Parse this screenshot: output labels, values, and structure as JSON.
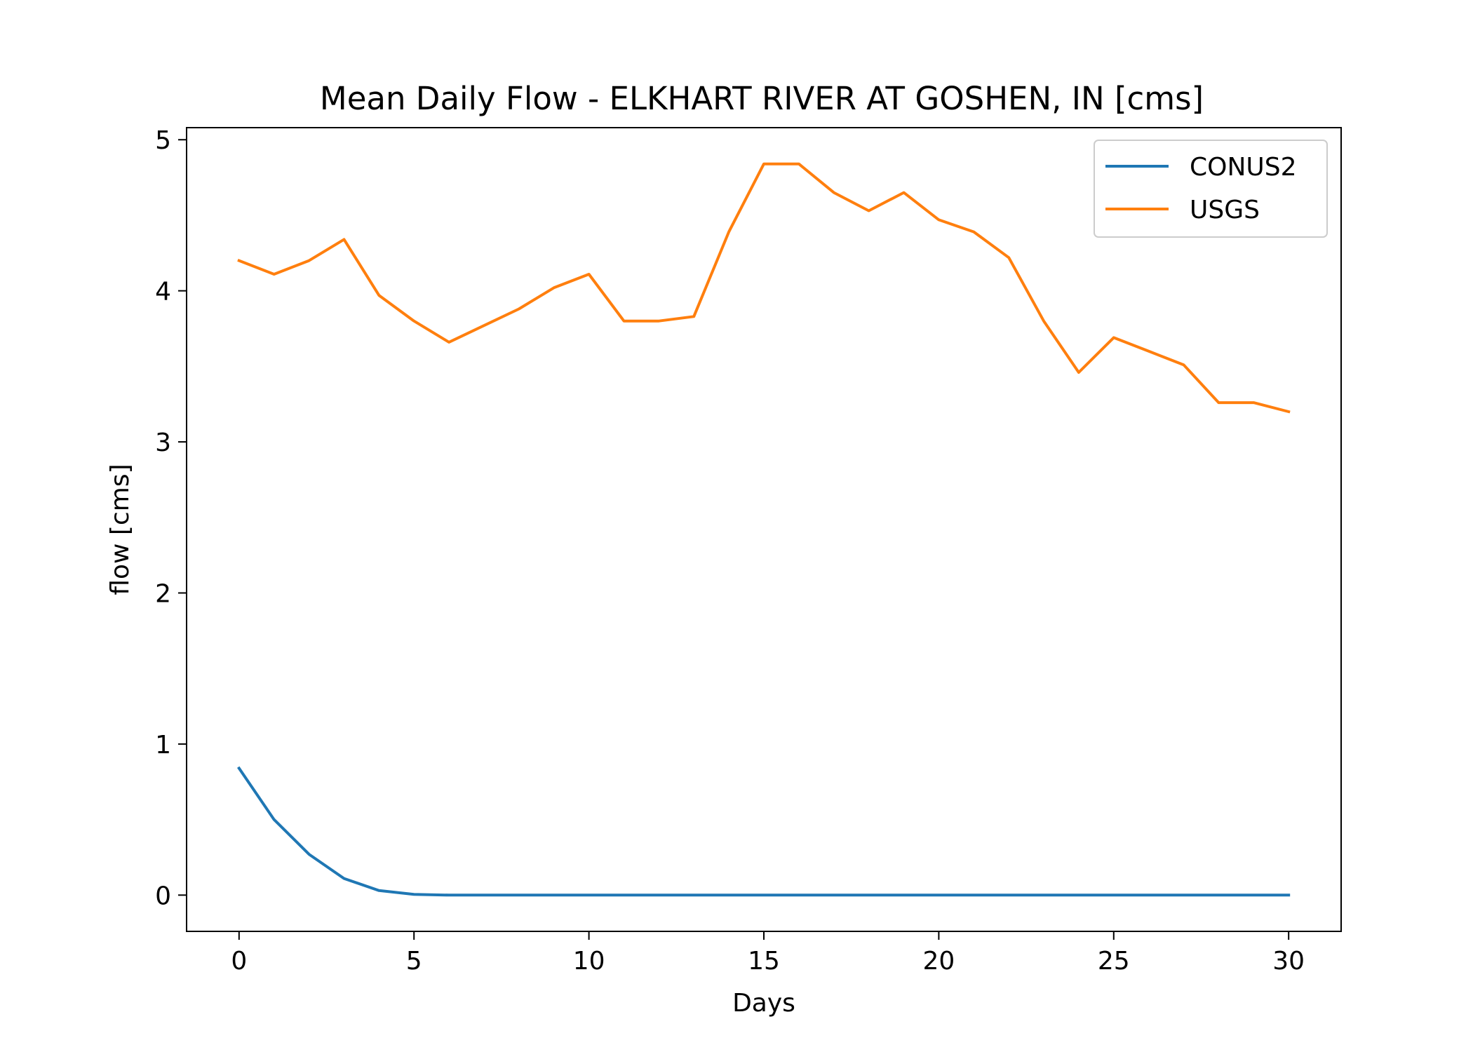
{
  "chart_data": {
    "type": "line",
    "title": "Mean Daily Flow - ELKHART RIVER AT GOSHEN, IN [cms]",
    "xlabel": "Days",
    "ylabel": "flow [cms]",
    "xlim": [
      -1.5,
      31.5
    ],
    "ylim": [
      -0.24,
      5.08
    ],
    "xticks": [
      0,
      5,
      10,
      15,
      20,
      25,
      30
    ],
    "yticks": [
      0,
      1,
      2,
      3,
      4,
      5
    ],
    "grid": false,
    "legend": "top-right",
    "x": [
      0,
      1,
      2,
      3,
      4,
      5,
      6,
      7,
      8,
      9,
      10,
      11,
      12,
      13,
      14,
      15,
      16,
      17,
      18,
      19,
      20,
      21,
      22,
      23,
      24,
      25,
      26,
      27,
      28,
      29,
      30
    ],
    "series": [
      {
        "name": "CONUS2",
        "color": "#1f77b4",
        "values": [
          0.84,
          0.5,
          0.27,
          0.11,
          0.03,
          0.005,
          0,
          0,
          0,
          0,
          0,
          0,
          0,
          0,
          0,
          0,
          0,
          0,
          0,
          0,
          0,
          0,
          0,
          0,
          0,
          0,
          0,
          0,
          0,
          0,
          0
        ]
      },
      {
        "name": "USGS",
        "color": "#ff7f0e",
        "values": [
          4.2,
          4.11,
          4.2,
          4.34,
          3.97,
          3.8,
          3.66,
          3.77,
          3.88,
          4.02,
          4.11,
          3.8,
          3.8,
          3.83,
          4.39,
          4.84,
          4.84,
          4.65,
          4.53,
          4.65,
          4.47,
          4.39,
          4.22,
          3.8,
          3.46,
          3.69,
          3.6,
          3.51,
          3.26,
          3.26,
          3.2
        ]
      }
    ]
  }
}
